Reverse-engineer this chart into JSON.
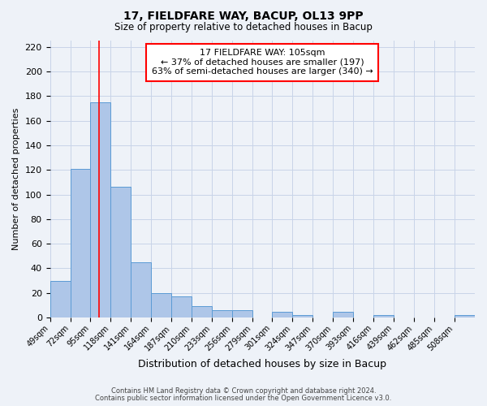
{
  "title": "17, FIELDFARE WAY, BACUP, OL13 9PP",
  "subtitle": "Size of property relative to detached houses in Bacup",
  "xlabel": "Distribution of detached houses by size in Bacup",
  "ylabel": "Number of detached properties",
  "footer_line1": "Contains HM Land Registry data © Crown copyright and database right 2024.",
  "footer_line2": "Contains public sector information licensed under the Open Government Licence v3.0.",
  "bin_labels": [
    "49sqm",
    "72sqm",
    "95sqm",
    "118sqm",
    "141sqm",
    "164sqm",
    "187sqm",
    "210sqm",
    "233sqm",
    "256sqm",
    "279sqm",
    "301sqm",
    "324sqm",
    "347sqm",
    "370sqm",
    "393sqm",
    "416sqm",
    "439sqm",
    "462sqm",
    "485sqm",
    "508sqm"
  ],
  "bar_values": [
    30,
    121,
    175,
    106,
    45,
    20,
    17,
    9,
    6,
    6,
    0,
    5,
    2,
    0,
    5,
    0,
    2,
    0,
    0,
    0,
    2
  ],
  "bar_color": "#aec6e8",
  "bar_edge_color": "#5b9bd5",
  "red_line_x": 105,
  "bin_edges": [
    49,
    72,
    95,
    118,
    141,
    164,
    187,
    210,
    233,
    256,
    279,
    301,
    324,
    347,
    370,
    393,
    416,
    439,
    462,
    485,
    508
  ],
  "bin_width": 23,
  "ylim": [
    0,
    225
  ],
  "yticks": [
    0,
    20,
    40,
    60,
    80,
    100,
    120,
    140,
    160,
    180,
    200,
    220
  ],
  "annotation_title": "17 FIELDFARE WAY: 105sqm",
  "annotation_line1": "← 37% of detached houses are smaller (197)",
  "annotation_line2": "63% of semi-detached houses are larger (340) →",
  "bg_color": "#eef2f8",
  "grid_color": "#c8d4e8"
}
